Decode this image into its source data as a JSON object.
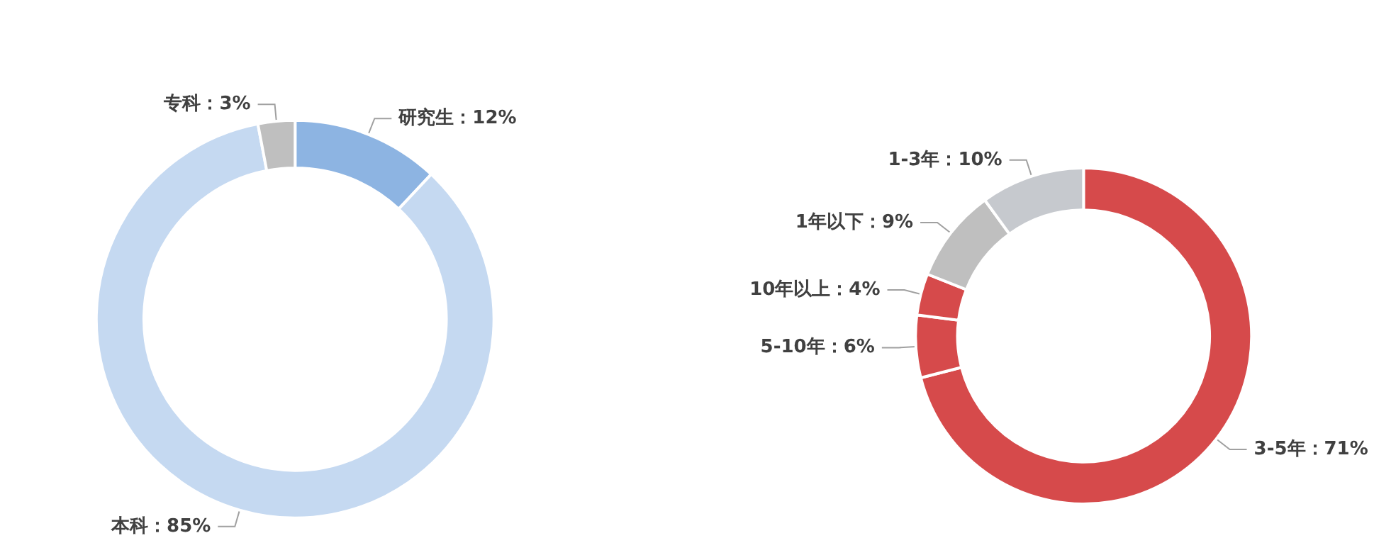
{
  "chart_data": [
    {
      "type": "donut",
      "categories": [
        "研究生",
        "本科",
        "专科"
      ],
      "values": [
        12,
        85,
        3
      ],
      "value_labels": [
        "：12%",
        "：85%",
        "：3%"
      ],
      "colors": [
        "#8db4e2",
        "#c5d9f1",
        "#bfbfbf"
      ],
      "legend": false
    },
    {
      "type": "donut",
      "categories": [
        "3-5年",
        "5-10年",
        "10年以上",
        "1年以下",
        "1-3年"
      ],
      "values": [
        71,
        6,
        4,
        9,
        10
      ],
      "value_labels": [
        "：71%",
        "：6%",
        "：4%",
        "：9%",
        "：10%"
      ],
      "colors": [
        "#d64a4b",
        "#d64a4b",
        "#d64a4b",
        "#bfbfbf",
        "#c6c9ce"
      ],
      "legend": false
    }
  ]
}
